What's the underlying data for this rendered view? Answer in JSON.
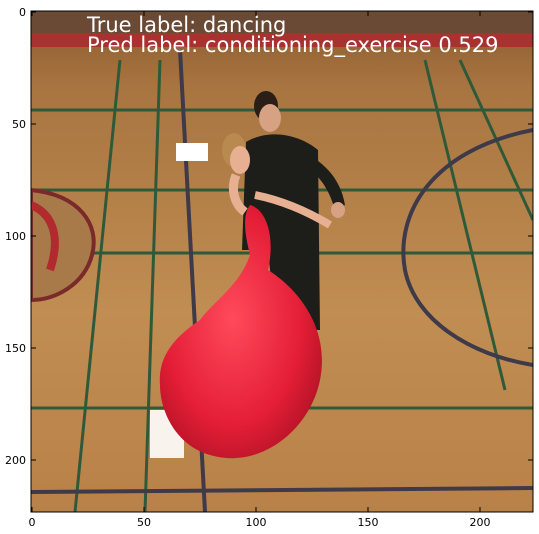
{
  "overlay": {
    "true_label": "True label: dancing",
    "pred_label": "Pred label: conditioning_exercise 0.529"
  },
  "axes": {
    "x_ticks": [
      "0",
      "50",
      "100",
      "150",
      "200"
    ],
    "y_ticks": [
      "0",
      "50",
      "100",
      "150",
      "200"
    ]
  },
  "scene": {
    "subject": "ballroom dancing couple on gym floor",
    "dress_color": "#e8203a",
    "suit_color": "#1d1d1a",
    "floor_color": "#b8874a"
  }
}
